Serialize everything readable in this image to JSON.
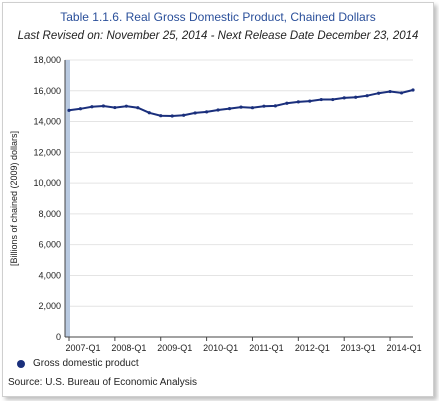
{
  "colors": {
    "series": "#1a2f7c",
    "shade": "#b8c9e0",
    "grid": "#e4e4e4",
    "axis": "#444444"
  },
  "chart_data": {
    "type": "line",
    "title": "Table 1.1.6. Real Gross Domestic Product, Chained Dollars",
    "subtitle": "Last Revised on: November 25, 2014 - Next Release Date December 23, 2014",
    "ylabel": "[Billions of chained (2009) dollars]",
    "xlabel": "",
    "ylim": [
      0,
      18000
    ],
    "yticks": [
      0,
      2000,
      4000,
      6000,
      8000,
      10000,
      12000,
      14000,
      16000,
      18000
    ],
    "ytick_labels": [
      "0",
      "2,000",
      "4,000",
      "6,000",
      "8,000",
      "10,000",
      "12,000",
      "14,000",
      "16,000",
      "18,000"
    ],
    "xtick_labels": [
      "2007-Q1",
      "2008-Q1",
      "2009-Q1",
      "2010-Q1",
      "2011-Q1",
      "2012-Q1",
      "2013-Q1",
      "2014-Q1"
    ],
    "grid": true,
    "legend_position": "bottom-left",
    "x": [
      "2007-Q1",
      "2007-Q2",
      "2007-Q3",
      "2007-Q4",
      "2008-Q1",
      "2008-Q2",
      "2008-Q3",
      "2008-Q4",
      "2009-Q1",
      "2009-Q2",
      "2009-Q3",
      "2009-Q4",
      "2010-Q1",
      "2010-Q2",
      "2010-Q3",
      "2010-Q4",
      "2011-Q1",
      "2011-Q2",
      "2011-Q3",
      "2011-Q4",
      "2012-Q1",
      "2012-Q2",
      "2012-Q3",
      "2012-Q4",
      "2013-Q1",
      "2013-Q2",
      "2013-Q3",
      "2013-Q4",
      "2014-Q1",
      "2014-Q2",
      "2014-Q3"
    ],
    "series": [
      {
        "name": "Gross domestic product",
        "values": [
          14730,
          14830,
          14960,
          15010,
          14910,
          15000,
          14900,
          14570,
          14380,
          14360,
          14410,
          14560,
          14630,
          14750,
          14840,
          14940,
          14900,
          15000,
          15020,
          15190,
          15280,
          15330,
          15430,
          15430,
          15540,
          15580,
          15680,
          15840,
          15950,
          15860,
          16050
        ]
      }
    ]
  },
  "legend": {
    "label": "Gross domestic product"
  },
  "source": "Source: U.S. Bureau of Economic  Analysis"
}
